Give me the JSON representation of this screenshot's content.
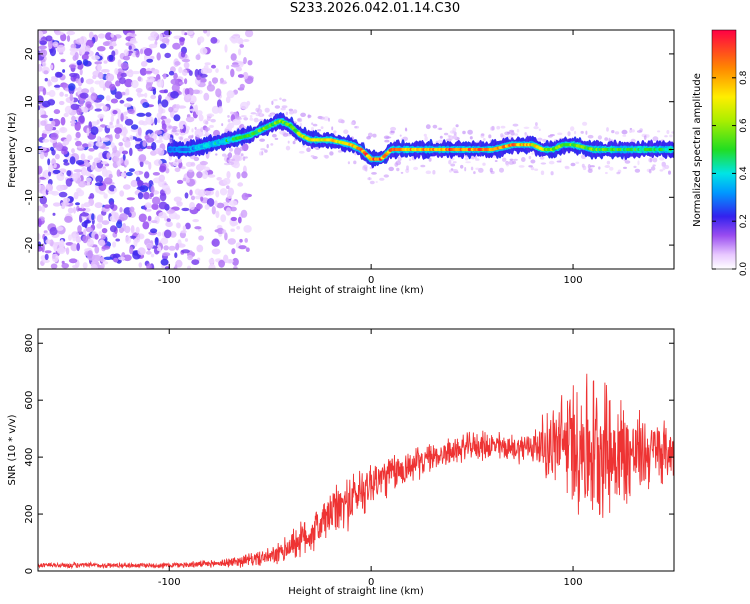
{
  "title": "S233.2026.042.01.14.C30",
  "chart_data": [
    {
      "type": "heatmap",
      "title": "",
      "xlabel": "Height of straight line (km)",
      "ylabel": "Frequency (Hz)",
      "xlim": [
        -165,
        150
      ],
      "ylim": [
        -25,
        25
      ],
      "xticks": [
        -100,
        0,
        100
      ],
      "yticks": [
        -20,
        -10,
        0,
        10,
        20
      ],
      "colorbar": {
        "label": "Normalized spectral amplitude",
        "range": [
          0.0,
          1.0
        ],
        "ticks": [
          0.0,
          0.2,
          0.4,
          0.6,
          0.8
        ],
        "tick_labels": [
          "0.0",
          "0.2",
          "0.4",
          "0.6",
          "0.8"
        ]
      },
      "noise_region_x": [
        -165,
        -60
      ],
      "ridge": {
        "x": [
          -100,
          -90,
          -80,
          -70,
          -60,
          -50,
          -45,
          -40,
          -35,
          -30,
          -20,
          -10,
          -5,
          0,
          5,
          10,
          20,
          30,
          40,
          50,
          60,
          70,
          80,
          85,
          90,
          95,
          100,
          110,
          120,
          130,
          140,
          150
        ],
        "freq_hz": [
          0,
          0,
          1,
          2,
          3,
          5,
          6,
          5,
          3,
          2,
          2,
          1,
          0,
          -2,
          -2,
          0,
          0,
          0,
          0,
          0,
          0,
          1,
          1,
          0,
          0,
          1,
          1,
          0,
          0,
          0,
          0,
          0
        ],
        "amplitude": [
          0.3,
          0.35,
          0.4,
          0.5,
          0.55,
          0.6,
          0.6,
          0.6,
          0.7,
          0.75,
          0.8,
          0.85,
          0.9,
          0.95,
          0.95,
          0.9,
          0.85,
          0.9,
          0.95,
          0.95,
          0.95,
          0.9,
          0.8,
          0.7,
          0.65,
          0.6,
          0.6,
          0.6,
          0.55,
          0.55,
          0.5,
          0.5
        ]
      }
    },
    {
      "type": "line",
      "title": "",
      "xlabel": "Height of straight line (km)",
      "ylabel": "SNR (10 * v/v)",
      "xlim": [
        -165,
        150
      ],
      "ylim": [
        0,
        850
      ],
      "xticks": [
        -100,
        0,
        100
      ],
      "yticks": [
        0,
        200,
        400,
        600,
        800
      ],
      "series": [
        {
          "name": "SNR",
          "color": "#ee3333",
          "x": [
            -165,
            -140,
            -120,
            -100,
            -80,
            -70,
            -60,
            -50,
            -45,
            -40,
            -30,
            -20,
            -10,
            0,
            10,
            20,
            30,
            40,
            50,
            60,
            70,
            80,
            90,
            95,
            100,
            105,
            110,
            115,
            120,
            125,
            130,
            140,
            150
          ],
          "envelope_mean": [
            20,
            20,
            20,
            20,
            25,
            30,
            40,
            50,
            60,
            90,
            130,
            200,
            250,
            310,
            340,
            370,
            400,
            420,
            440,
            440,
            430,
            440,
            440,
            450,
            450,
            440,
            430,
            440,
            420,
            410,
            410,
            420,
            420
          ],
          "noise_amplitude": [
            8,
            8,
            8,
            8,
            10,
            15,
            20,
            25,
            35,
            45,
            60,
            70,
            80,
            70,
            60,
            50,
            40,
            40,
            40,
            45,
            40,
            50,
            120,
            150,
            180,
            220,
            220,
            200,
            190,
            170,
            130,
            100,
            80
          ]
        }
      ]
    }
  ]
}
